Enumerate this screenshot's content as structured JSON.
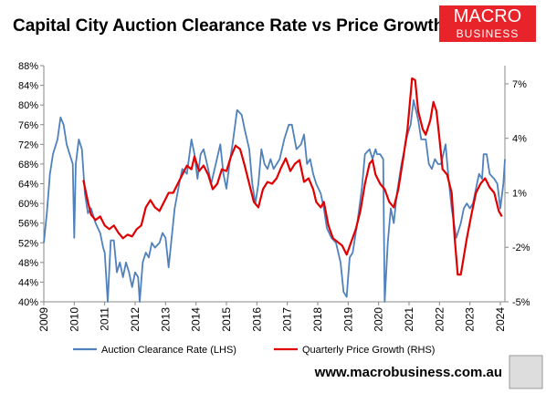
{
  "chart_data": {
    "type": "line",
    "title": "Capital City Auction Clearance Rate vs Price Growth",
    "xlim": [
      2009,
      2024.15
    ],
    "xticks": [
      2009,
      2010,
      2011,
      2012,
      2013,
      2014,
      2015,
      2016,
      2017,
      2018,
      2019,
      2020,
      2021,
      2022,
      2023,
      2024
    ],
    "ylim": [
      40,
      88
    ],
    "yticks": [
      {
        "value": 40,
        "label": "40%"
      },
      {
        "value": 44,
        "label": "44%"
      },
      {
        "value": 48,
        "label": "48%"
      },
      {
        "value": 52,
        "label": "52%"
      },
      {
        "value": 56,
        "label": "56%"
      },
      {
        "value": 60,
        "label": "60%"
      },
      {
        "value": 64,
        "label": "64%"
      },
      {
        "value": 68,
        "label": "68%"
      },
      {
        "value": 72,
        "label": "72%"
      },
      {
        "value": 76,
        "label": "76%"
      },
      {
        "value": 80,
        "label": "80%"
      },
      {
        "value": 84,
        "label": "84%"
      },
      {
        "value": 88,
        "label": "88%"
      }
    ],
    "y2lim": [
      -5,
      8
    ],
    "y2ticks": [
      {
        "value": -5,
        "label": "-5%"
      },
      {
        "value": -2,
        "label": "-2%"
      },
      {
        "value": 1,
        "label": "1%"
      },
      {
        "value": 4,
        "label": "4%"
      },
      {
        "value": 7,
        "label": "7%"
      }
    ],
    "series": [
      {
        "name": "Auction Clearance Rate (LHS)",
        "color": "#4f81bd",
        "x": [
          2009.0,
          2009.1,
          2009.2,
          2009.3,
          2009.45,
          2009.55,
          2009.65,
          2009.75,
          2009.85,
          2009.95,
          2010.0,
          2010.05,
          2010.15,
          2010.25,
          2010.35,
          2010.45,
          2010.55,
          2010.7,
          2010.85,
          2010.95,
          2011.0,
          2011.1,
          2011.2,
          2011.3,
          2011.4,
          2011.5,
          2011.6,
          2011.7,
          2011.8,
          2011.9,
          2012.0,
          2012.1,
          2012.15,
          2012.25,
          2012.35,
          2012.45,
          2012.55,
          2012.65,
          2012.8,
          2012.9,
          2013.0,
          2013.1,
          2013.2,
          2013.3,
          2013.45,
          2013.55,
          2013.7,
          2013.85,
          2013.95,
          2014.05,
          2014.15,
          2014.25,
          2014.4,
          2014.5,
          2014.65,
          2014.8,
          2014.9,
          2015.0,
          2015.1,
          2015.2,
          2015.35,
          2015.5,
          2015.6,
          2015.75,
          2015.85,
          2015.95,
          2016.05,
          2016.15,
          2016.25,
          2016.35,
          2016.45,
          2016.55,
          2016.65,
          2016.75,
          2016.9,
          2017.05,
          2017.15,
          2017.3,
          2017.45,
          2017.55,
          2017.65,
          2017.75,
          2017.85,
          2017.95,
          2018.1,
          2018.2,
          2018.3,
          2018.45,
          2018.6,
          2018.75,
          2018.85,
          2018.95,
          2019.0,
          2019.05,
          2019.15,
          2019.3,
          2019.45,
          2019.55,
          2019.7,
          2019.8,
          2019.9,
          2019.95,
          2020.05,
          2020.15,
          2020.2,
          2020.3,
          2020.4,
          2020.5,
          2020.6,
          2020.75,
          2020.95,
          2021.05,
          2021.15,
          2021.3,
          2021.4,
          2021.55,
          2021.65,
          2021.75,
          2021.85,
          2021.95,
          2022.05,
          2022.2,
          2022.3,
          2022.4,
          2022.55,
          2022.7,
          2022.8,
          2022.9,
          2023.0,
          2023.1,
          2023.2,
          2023.3,
          2023.4,
          2023.45,
          2023.55,
          2023.65,
          2023.8,
          2023.9,
          2024.0,
          2024.1,
          2024.15
        ],
        "values": [
          52,
          58,
          66,
          70,
          73,
          77.5,
          76,
          72,
          70,
          68,
          53,
          68,
          73,
          71,
          62,
          58,
          59,
          56,
          54,
          51,
          50,
          40,
          52.5,
          52.5,
          46,
          48,
          45,
          48,
          46,
          43,
          46,
          45,
          40,
          48,
          50,
          49,
          52,
          51,
          52,
          54,
          53,
          47,
          53,
          59,
          64,
          67,
          66,
          73,
          70,
          65,
          70,
          71,
          67,
          64,
          68,
          72,
          66,
          63,
          68,
          72,
          79,
          78,
          75,
          71,
          64,
          60,
          64,
          71,
          68,
          67,
          69,
          67,
          68,
          69,
          73,
          76,
          76,
          71,
          72,
          74,
          68,
          69,
          66,
          64,
          62,
          59,
          55,
          53,
          52,
          48,
          42,
          41,
          45,
          49,
          50,
          56,
          63,
          70,
          71,
          69,
          71,
          70,
          70,
          69,
          40,
          52,
          59,
          56,
          62,
          68,
          74,
          76,
          81,
          77,
          73,
          73,
          68,
          67,
          69,
          68,
          68,
          72,
          65,
          59,
          53,
          56,
          59,
          60,
          59,
          60,
          63,
          66,
          65,
          70,
          70,
          66,
          65,
          64,
          59,
          64,
          69
        ]
      },
      {
        "name": "Quarterly Price Growth (RHS)",
        "color": "#e00000",
        "axis": "y2",
        "x": [
          2010.3,
          2010.45,
          2010.55,
          2010.7,
          2010.85,
          2011.0,
          2011.15,
          2011.3,
          2011.45,
          2011.6,
          2011.75,
          2011.9,
          2012.05,
          2012.2,
          2012.35,
          2012.5,
          2012.65,
          2012.8,
          2012.95,
          2013.1,
          2013.25,
          2013.4,
          2013.55,
          2013.7,
          2013.85,
          2013.95,
          2014.1,
          2014.25,
          2014.4,
          2014.55,
          2014.7,
          2014.85,
          2015.0,
          2015.15,
          2015.3,
          2015.45,
          2015.6,
          2015.75,
          2015.9,
          2016.05,
          2016.2,
          2016.35,
          2016.5,
          2016.65,
          2016.8,
          2016.95,
          2017.1,
          2017.25,
          2017.4,
          2017.55,
          2017.7,
          2017.85,
          2017.95,
          2018.1,
          2018.2,
          2018.35,
          2018.5,
          2018.65,
          2018.8,
          2018.95,
          2019.1,
          2019.25,
          2019.4,
          2019.55,
          2019.7,
          2019.8,
          2019.9,
          2020.05,
          2020.2,
          2020.35,
          2020.5,
          2020.65,
          2020.8,
          2020.95,
          2021.1,
          2021.2,
          2021.3,
          2021.45,
          2021.55,
          2021.7,
          2021.8,
          2021.9,
          2022.0,
          2022.1,
          2022.25,
          2022.4,
          2022.5,
          2022.6,
          2022.7,
          2022.8,
          2022.9,
          2023.05,
          2023.2,
          2023.35,
          2023.5,
          2023.65,
          2023.8,
          2023.95,
          2024.05
        ],
        "values": [
          1.7,
          0.5,
          -0.2,
          -0.5,
          -0.3,
          -0.8,
          -1.0,
          -0.8,
          -1.2,
          -1.5,
          -1.3,
          -1.4,
          -1.0,
          -0.8,
          0.2,
          0.6,
          0.2,
          0.0,
          0.5,
          1.0,
          1.0,
          1.5,
          2.0,
          2.5,
          2.3,
          3.0,
          2.2,
          2.5,
          2.0,
          1.2,
          1.5,
          2.3,
          2.2,
          3.0,
          3.6,
          3.4,
          2.5,
          1.5,
          0.5,
          0.2,
          1.2,
          1.6,
          1.5,
          1.8,
          2.4,
          2.9,
          2.2,
          2.6,
          2.8,
          1.6,
          1.8,
          1.2,
          0.5,
          0.2,
          0.5,
          -0.8,
          -1.5,
          -1.7,
          -1.9,
          -2.4,
          -1.7,
          -1.0,
          0.0,
          1.5,
          2.6,
          2.8,
          2.0,
          1.5,
          1.2,
          0.5,
          0.2,
          1.2,
          2.8,
          4.5,
          7.3,
          7.2,
          5.5,
          4.5,
          4.2,
          5.0,
          6.0,
          5.5,
          4.0,
          2.3,
          2.0,
          1.0,
          -1.5,
          -3.5,
          -3.5,
          -2.5,
          -1.5,
          -0.2,
          1.0,
          1.5,
          1.8,
          1.3,
          1.0,
          0.0,
          -0.3
        ]
      }
    ]
  },
  "brand": {
    "line1": "MACRO",
    "line2": "BUSINESS"
  },
  "footer": "www.macrobusiness.com.au"
}
